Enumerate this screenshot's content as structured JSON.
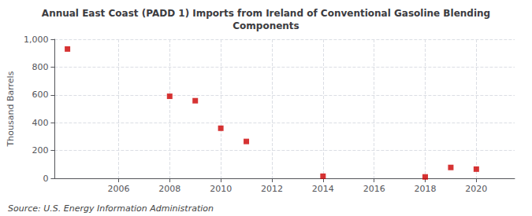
{
  "chart_data": {
    "type": "scatter",
    "title": "Annual East Coast (PADD 1) Imports from Ireland of Conventional Gasoline Blending\nComponents",
    "ylabel": "Thousand Barrels",
    "annotations": [
      "Source: U.S. Energy Information Administration"
    ],
    "x": [
      2004,
      2008,
      2009,
      2010,
      2011,
      2014,
      2018,
      2019,
      2020
    ],
    "values": [
      930,
      590,
      558,
      360,
      265,
      15,
      10,
      78,
      66
    ],
    "color": "#cc0000",
    "marker": "square",
    "xlim": [
      2003.5,
      2021.5
    ],
    "ylim": [
      0,
      1000
    ],
    "xticks": [
      2006,
      2008,
      2010,
      2012,
      2014,
      2016,
      2018,
      2020
    ],
    "yticks": [
      0,
      200,
      400,
      600,
      800,
      {
        "value": 1000,
        "label": "1,000"
      }
    ],
    "grid": true
  }
}
